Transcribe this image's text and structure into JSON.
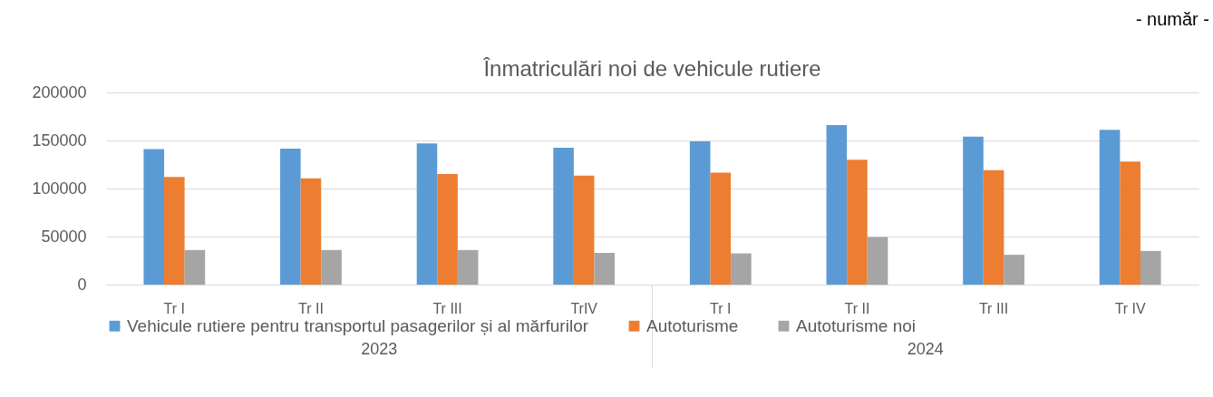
{
  "chart_data": {
    "type": "bar",
    "title": "Înmatriculări noi de vehicule rutiere",
    "categories": [
      "Tr I",
      "Tr II",
      "Tr III",
      "TrIV",
      "Tr I",
      "Tr II",
      "Tr III",
      "Tr IV"
    ],
    "series": [
      {
        "name": "Vehicule rutiere pentru transportul pasagerilor și al mărfurilor",
        "color": "#5b9bd5",
        "values": [
          141000,
          141500,
          147000,
          142500,
          149000,
          166000,
          154000,
          161000
        ]
      },
      {
        "name": "Autoturisme",
        "color": "#ed7d31",
        "values": [
          112000,
          110500,
          115000,
          113500,
          116500,
          130000,
          119000,
          128000
        ]
      },
      {
        "name": "Autoturisme noi",
        "color": "#a5a5a5",
        "values": [
          36000,
          36000,
          36000,
          33000,
          32500,
          49500,
          31000,
          35000
        ]
      }
    ],
    "ylim": [
      0,
      200000
    ],
    "yticks": [
      0,
      50000,
      100000,
      150000,
      200000
    ],
    "grid": "y",
    "legend": "bottom",
    "annotations": [
      "- număr -",
      "2023",
      "2024"
    ]
  }
}
